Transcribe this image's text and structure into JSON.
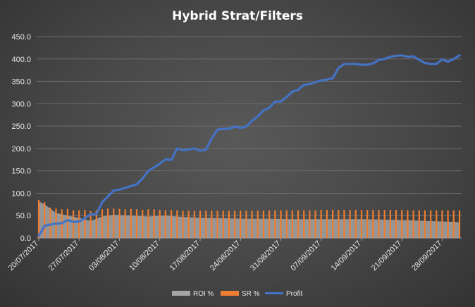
{
  "chart_data": {
    "type": "bar",
    "title": "Hybrid Strat/Filters",
    "xlabel": "",
    "ylabel": "",
    "ylim": [
      0,
      450
    ],
    "yticks": [
      "0.0",
      "50.0",
      "100.0",
      "150.0",
      "200.0",
      "250.0",
      "300.0",
      "350.0",
      "400.0",
      "450.0"
    ],
    "xlim": [
      "20/07/2017",
      "01/10/2017"
    ],
    "xticks": [
      "20/07/2017",
      "27/07/2017",
      "03/08/2017",
      "10/08/2017",
      "17/08/2017",
      "24/08/2017",
      "31/08/2017",
      "07/09/2017",
      "14/09/2017",
      "21/09/2017",
      "28/09/2017"
    ],
    "grid": true,
    "legend_position": "bottom",
    "colors": {
      "roi": "#a5a5a5",
      "sr": "#ed7d31",
      "profit": "#4472c4"
    },
    "series": [
      {
        "name": "ROI %",
        "type": "area",
        "points": [
          [
            "20/07/2017",
            82
          ],
          [
            "21/07/2017",
            75
          ],
          [
            "23/07/2017",
            56
          ],
          [
            "25/07/2017",
            50
          ],
          [
            "27/07/2017",
            45
          ],
          [
            "29/07/2017",
            38
          ],
          [
            "31/07/2017",
            48
          ],
          [
            "02/08/2017",
            52
          ],
          [
            "05/08/2017",
            50
          ],
          [
            "08/08/2017",
            48
          ],
          [
            "11/08/2017",
            50
          ],
          [
            "14/08/2017",
            47
          ],
          [
            "17/08/2017",
            45
          ],
          [
            "21/08/2017",
            44
          ],
          [
            "25/08/2017",
            43
          ],
          [
            "29/08/2017",
            43
          ],
          [
            "02/09/2017",
            42
          ],
          [
            "06/09/2017",
            42
          ],
          [
            "10/09/2017",
            42
          ],
          [
            "14/09/2017",
            42
          ],
          [
            "18/09/2017",
            41
          ],
          [
            "22/09/2017",
            40
          ],
          [
            "25/09/2017",
            38
          ],
          [
            "28/09/2017",
            37
          ],
          [
            "30/09/2017",
            36
          ],
          [
            "01/10/2017",
            35
          ]
        ]
      },
      {
        "name": "SR %",
        "type": "bar",
        "points": [
          [
            "20/07/2017",
            85
          ],
          [
            "21/07/2017",
            80
          ],
          [
            "22/07/2017",
            68
          ],
          [
            "23/07/2017",
            66
          ],
          [
            "24/07/2017",
            64
          ],
          [
            "25/07/2017",
            65
          ],
          [
            "26/07/2017",
            62
          ],
          [
            "27/07/2017",
            62
          ],
          [
            "28/07/2017",
            63
          ],
          [
            "29/07/2017",
            60
          ],
          [
            "30/07/2017",
            62
          ],
          [
            "31/07/2017",
            64
          ],
          [
            "01/08/2017",
            66
          ],
          [
            "02/08/2017",
            66
          ],
          [
            "03/08/2017",
            65
          ],
          [
            "04/08/2017",
            64
          ],
          [
            "05/08/2017",
            65
          ],
          [
            "06/08/2017",
            64
          ],
          [
            "07/08/2017",
            63
          ],
          [
            "08/08/2017",
            64
          ],
          [
            "09/08/2017",
            64
          ],
          [
            "10/08/2017",
            63
          ],
          [
            "11/08/2017",
            62
          ],
          [
            "12/08/2017",
            63
          ],
          [
            "13/08/2017",
            62
          ],
          [
            "14/08/2017",
            61
          ],
          [
            "15/08/2017",
            61
          ],
          [
            "16/08/2017",
            61
          ],
          [
            "17/08/2017",
            61
          ],
          [
            "18/08/2017",
            61
          ],
          [
            "19/08/2017",
            61
          ],
          [
            "20/08/2017",
            61
          ],
          [
            "21/08/2017",
            61
          ],
          [
            "22/08/2017",
            61
          ],
          [
            "23/08/2017",
            61
          ],
          [
            "24/08/2017",
            61
          ],
          [
            "25/08/2017",
            61
          ],
          [
            "26/08/2017",
            61
          ],
          [
            "27/08/2017",
            61
          ],
          [
            "28/08/2017",
            61
          ],
          [
            "29/08/2017",
            62
          ],
          [
            "30/08/2017",
            62
          ],
          [
            "31/08/2017",
            62
          ],
          [
            "01/09/2017",
            62
          ],
          [
            "02/09/2017",
            62
          ],
          [
            "03/09/2017",
            62
          ],
          [
            "04/09/2017",
            62
          ],
          [
            "05/09/2017",
            62
          ],
          [
            "06/09/2017",
            62
          ],
          [
            "07/09/2017",
            63
          ],
          [
            "08/09/2017",
            63
          ],
          [
            "09/09/2017",
            63
          ],
          [
            "10/09/2017",
            63
          ],
          [
            "11/09/2017",
            63
          ],
          [
            "12/09/2017",
            63
          ],
          [
            "13/09/2017",
            63
          ],
          [
            "14/09/2017",
            63
          ],
          [
            "15/09/2017",
            63
          ],
          [
            "16/09/2017",
            63
          ],
          [
            "17/09/2017",
            63
          ],
          [
            "18/09/2017",
            63
          ],
          [
            "19/09/2017",
            63
          ],
          [
            "20/09/2017",
            63
          ],
          [
            "21/09/2017",
            63
          ],
          [
            "22/09/2017",
            62
          ],
          [
            "23/09/2017",
            62
          ],
          [
            "24/09/2017",
            62
          ],
          [
            "25/09/2017",
            62
          ],
          [
            "26/09/2017",
            62
          ],
          [
            "27/09/2017",
            62
          ],
          [
            "28/09/2017",
            62
          ],
          [
            "29/09/2017",
            62
          ],
          [
            "30/09/2017",
            62
          ],
          [
            "01/10/2017",
            62
          ]
        ]
      },
      {
        "name": "Profit",
        "type": "line",
        "points": [
          [
            "20/07/2017",
            5
          ],
          [
            "21/07/2017",
            27
          ],
          [
            "22/07/2017",
            30
          ],
          [
            "23/07/2017",
            32
          ],
          [
            "24/07/2017",
            33
          ],
          [
            "25/07/2017",
            40
          ],
          [
            "26/07/2017",
            36
          ],
          [
            "27/07/2017",
            37
          ],
          [
            "28/07/2017",
            44
          ],
          [
            "29/07/2017",
            53
          ],
          [
            "30/07/2017",
            53
          ],
          [
            "31/07/2017",
            80
          ],
          [
            "01/08/2017",
            93
          ],
          [
            "02/08/2017",
            106
          ],
          [
            "03/08/2017",
            108
          ],
          [
            "04/08/2017",
            112
          ],
          [
            "05/08/2017",
            116
          ],
          [
            "06/08/2017",
            120
          ],
          [
            "07/08/2017",
            133
          ],
          [
            "08/08/2017",
            150
          ],
          [
            "09/08/2017",
            158
          ],
          [
            "10/08/2017",
            166
          ],
          [
            "11/08/2017",
            176
          ],
          [
            "12/08/2017",
            174
          ],
          [
            "13/08/2017",
            200
          ],
          [
            "14/08/2017",
            196
          ],
          [
            "15/08/2017",
            198
          ],
          [
            "16/08/2017",
            200
          ],
          [
            "17/08/2017",
            195
          ],
          [
            "18/08/2017",
            197
          ],
          [
            "19/08/2017",
            222
          ],
          [
            "20/08/2017",
            242
          ],
          [
            "21/08/2017",
            244
          ],
          [
            "22/08/2017",
            244
          ],
          [
            "23/08/2017",
            249
          ],
          [
            "24/08/2017",
            246
          ],
          [
            "25/08/2017",
            249
          ],
          [
            "26/08/2017",
            262
          ],
          [
            "27/08/2017",
            272
          ],
          [
            "28/08/2017",
            285
          ],
          [
            "29/08/2017",
            291
          ],
          [
            "30/08/2017",
            305
          ],
          [
            "31/08/2017",
            305
          ],
          [
            "01/09/2017",
            315
          ],
          [
            "02/09/2017",
            327
          ],
          [
            "03/09/2017",
            331
          ],
          [
            "04/09/2017",
            342
          ],
          [
            "05/09/2017",
            344
          ],
          [
            "06/09/2017",
            348
          ],
          [
            "07/09/2017",
            352
          ],
          [
            "08/09/2017",
            354
          ],
          [
            "09/09/2017",
            357
          ],
          [
            "10/09/2017",
            380
          ],
          [
            "11/09/2017",
            389
          ],
          [
            "12/09/2017",
            389
          ],
          [
            "13/09/2017",
            389
          ],
          [
            "14/09/2017",
            387
          ],
          [
            "15/09/2017",
            387
          ],
          [
            "16/09/2017",
            390
          ],
          [
            "17/09/2017",
            398
          ],
          [
            "18/09/2017",
            400
          ],
          [
            "19/09/2017",
            405
          ],
          [
            "20/09/2017",
            407
          ],
          [
            "21/09/2017",
            408
          ],
          [
            "22/09/2017",
            405
          ],
          [
            "23/09/2017",
            406
          ],
          [
            "24/09/2017",
            398
          ],
          [
            "25/09/2017",
            391
          ],
          [
            "26/09/2017",
            389
          ],
          [
            "27/09/2017",
            389
          ],
          [
            "28/09/2017",
            399
          ],
          [
            "29/09/2017",
            394
          ],
          [
            "30/09/2017",
            400
          ],
          [
            "01/10/2017",
            408
          ]
        ]
      }
    ]
  }
}
